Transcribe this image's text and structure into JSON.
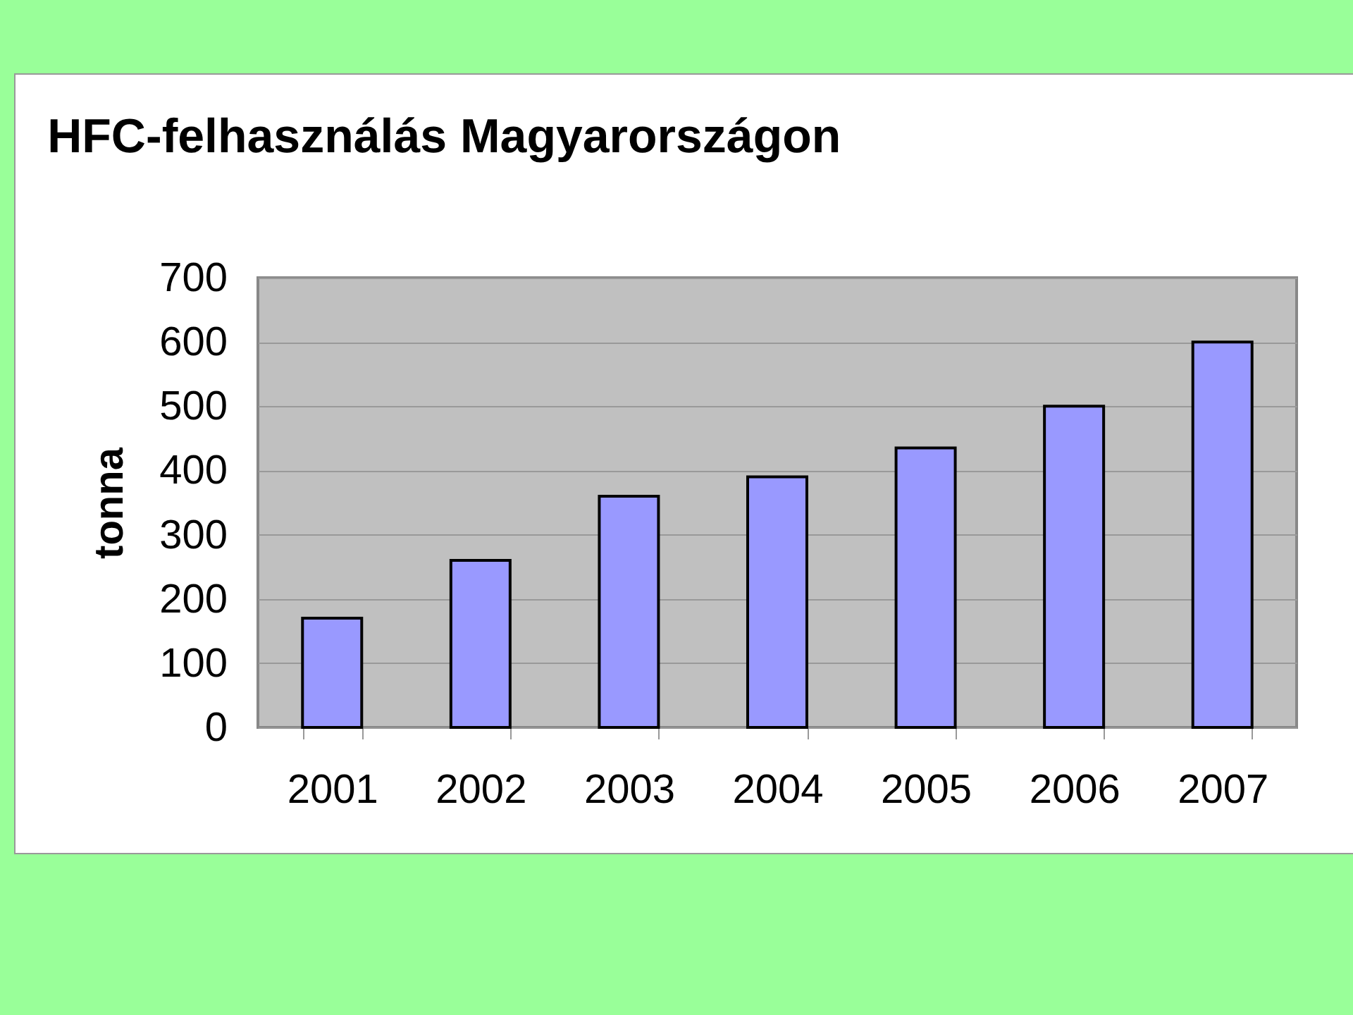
{
  "chart_data": {
    "type": "bar",
    "title": "HFC-felhasználás Magyarországon",
    "ylabel": "tonna",
    "categories": [
      "2001",
      "2002",
      "2003",
      "2004",
      "2005",
      "2006",
      "2007"
    ],
    "values": [
      170,
      260,
      360,
      390,
      435,
      500,
      600
    ],
    "color": "#9999ff",
    "ylim": [
      0,
      700
    ],
    "yticks": [
      0,
      100,
      200,
      300,
      400,
      500,
      600,
      700
    ],
    "grid": "y"
  }
}
